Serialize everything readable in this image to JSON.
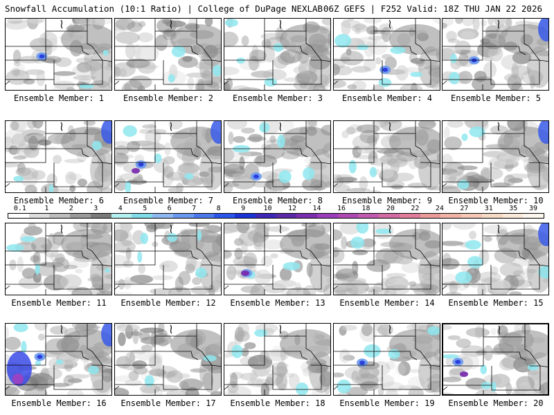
{
  "header": {
    "title_left": "Snowfall Accumulation (10:1 Ratio) | College of DuPage NEXLAB",
    "title_right": "06Z GEFS | F252 Valid: 18Z THU JAN 22 2026"
  },
  "colorbar": {
    "labels": [
      "0.1",
      "1",
      "2",
      "3",
      "4",
      "5",
      "6",
      "7",
      "8",
      "9",
      "10",
      "12",
      "14",
      "16",
      "18",
      "20",
      "22",
      "24",
      "27",
      "31",
      "35",
      "39"
    ],
    "colors": [
      "#ffffff",
      "#dcdcdc",
      "#bdbdbd",
      "#9a9a9a",
      "#7a7a7a",
      "#b3f0f0",
      "#7fdce8",
      "#8fb8f0",
      "#6a98ee",
      "#4d78ec",
      "#2a55ea",
      "#1a33d6",
      "#3c28b4",
      "#5a2aa6",
      "#7a2eae",
      "#9a3cbc",
      "#b048b4",
      "#c15aae",
      "#d26aa4",
      "#e07d9a",
      "#eb9a9a",
      "#f0b4a6",
      "#f4c8b4",
      "#f7dac6",
      "#faeadb",
      "#fdf6ee"
    ]
  },
  "members": [
    {
      "label": "Ensemble Member: 1"
    },
    {
      "label": "Ensemble Member: 2"
    },
    {
      "label": "Ensemble Member: 3"
    },
    {
      "label": "Ensemble Member: 4"
    },
    {
      "label": "Ensemble Member: 5"
    },
    {
      "label": "Ensemble Member: 6"
    },
    {
      "label": "Ensemble Member: 7"
    },
    {
      "label": "Ensemble Member: 8"
    },
    {
      "label": "Ensemble Member: 9"
    },
    {
      "label": "Ensemble Member: 10"
    },
    {
      "label": "Ensemble Member: 11"
    },
    {
      "label": "Ensemble Member: 12"
    },
    {
      "label": "Ensemble Member: 13"
    },
    {
      "label": "Ensemble Member: 14"
    },
    {
      "label": "Ensemble Member: 15"
    },
    {
      "label": "Ensemble Member: 16"
    },
    {
      "label": "Ensemble Member: 17"
    },
    {
      "label": "Ensemble Member: 18"
    },
    {
      "label": "Ensemble Member: 19"
    },
    {
      "label": "Ensemble Member: 20"
    }
  ]
}
